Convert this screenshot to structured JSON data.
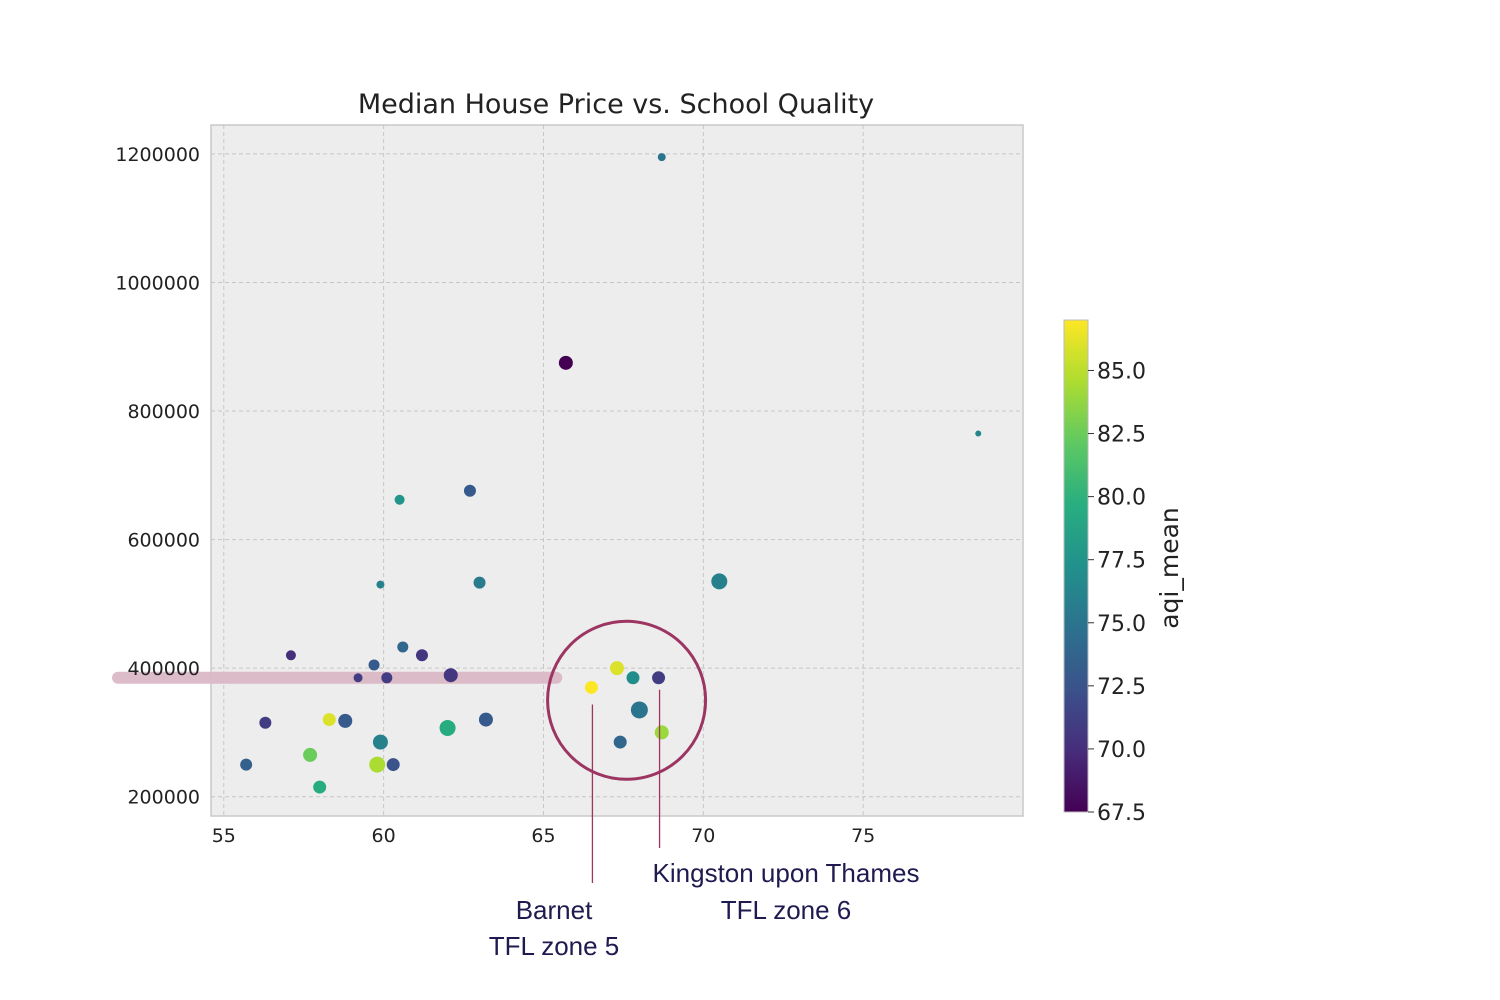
{
  "chart_data": {
    "type": "scatter",
    "title": "Median House Price vs. School Quality",
    "xlabel": "",
    "ylabel": "",
    "xlim": [
      54.6,
      80
    ],
    "ylim": [
      170000,
      1245000
    ],
    "x_ticks": [
      55,
      60,
      65,
      70,
      75
    ],
    "y_ticks": [
      200000,
      400000,
      600000,
      800000,
      1000000,
      1200000
    ],
    "grid": true,
    "colorbar": {
      "label": "aqi_mean",
      "min": 67.5,
      "max": 87.0,
      "ticks": [
        67.5,
        70.0,
        72.5,
        75.0,
        77.5,
        80.0,
        82.5,
        85.0
      ],
      "colormap": "viridis"
    },
    "points": [
      {
        "x": 55.7,
        "y": 250000,
        "c": 73.5,
        "s": 6
      },
      {
        "x": 56.3,
        "y": 315000,
        "c": 71.0,
        "s": 6
      },
      {
        "x": 57.1,
        "y": 420000,
        "c": 70.0,
        "s": 5
      },
      {
        "x": 57.7,
        "y": 265000,
        "c": 82.5,
        "s": 7
      },
      {
        "x": 58.0,
        "y": 215000,
        "c": 79.5,
        "s": 6.5
      },
      {
        "x": 58.3,
        "y": 320000,
        "c": 86.0,
        "s": 6.5
      },
      {
        "x": 58.8,
        "y": 318000,
        "c": 73.0,
        "s": 7
      },
      {
        "x": 59.2,
        "y": 385000,
        "c": 71.0,
        "s": 4.5
      },
      {
        "x": 59.7,
        "y": 405000,
        "c": 73.0,
        "s": 5.5
      },
      {
        "x": 59.8,
        "y": 250000,
        "c": 84.5,
        "s": 8
      },
      {
        "x": 59.9,
        "y": 285000,
        "c": 76.0,
        "s": 7.5
      },
      {
        "x": 59.9,
        "y": 530000,
        "c": 76.0,
        "s": 4
      },
      {
        "x": 60.1,
        "y": 385000,
        "c": 71.0,
        "s": 5.5
      },
      {
        "x": 60.3,
        "y": 250000,
        "c": 72.5,
        "s": 6.5
      },
      {
        "x": 60.5,
        "y": 662000,
        "c": 77.5,
        "s": 5
      },
      {
        "x": 60.6,
        "y": 433000,
        "c": 74.0,
        "s": 5.5
      },
      {
        "x": 61.2,
        "y": 420000,
        "c": 70.5,
        "s": 6
      },
      {
        "x": 62.0,
        "y": 307000,
        "c": 79.5,
        "s": 8
      },
      {
        "x": 62.1,
        "y": 389000,
        "c": 70.5,
        "s": 7
      },
      {
        "x": 62.7,
        "y": 676000,
        "c": 73.0,
        "s": 6
      },
      {
        "x": 63.0,
        "y": 533000,
        "c": 75.5,
        "s": 6
      },
      {
        "x": 63.2,
        "y": 320000,
        "c": 73.0,
        "s": 7
      },
      {
        "x": 65.7,
        "y": 875000,
        "c": 67.5,
        "s": 7
      },
      {
        "x": 66.5,
        "y": 370000,
        "c": 87.0,
        "s": 6.5
      },
      {
        "x": 67.3,
        "y": 400000,
        "c": 86.0,
        "s": 7
      },
      {
        "x": 67.4,
        "y": 285000,
        "c": 74.0,
        "s": 6.5
      },
      {
        "x": 67.8,
        "y": 385000,
        "c": 77.0,
        "s": 6.5
      },
      {
        "x": 68.0,
        "y": 335000,
        "c": 75.0,
        "s": 8.5
      },
      {
        "x": 68.6,
        "y": 385000,
        "c": 71.0,
        "s": 6.5
      },
      {
        "x": 68.7,
        "y": 300000,
        "c": 84.0,
        "s": 7
      },
      {
        "x": 68.7,
        "y": 1195000,
        "c": 75.0,
        "s": 4
      },
      {
        "x": 70.5,
        "y": 535000,
        "c": 76.0,
        "s": 8
      },
      {
        "x": 78.6,
        "y": 765000,
        "c": 76.5,
        "s": 3
      }
    ],
    "highlight_band_y": 385000,
    "highlight_circle": {
      "x": 67.6,
      "y": 350000
    },
    "annotations": [
      {
        "lines": [
          "Barnet",
          "TFL zone 5"
        ],
        "point_x": 66.5,
        "point_y": 370000
      },
      {
        "lines": [
          "Kingston upon Thames",
          "TFL zone 6"
        ],
        "point_x": 68.6,
        "point_y": 385000
      }
    ],
    "colors": {
      "highlight_band": "#dcb9c8",
      "highlight_circle": "#9c3562",
      "annotation_text": "#1f1a4f",
      "plot_bg": "#ededed",
      "grid": "#c6c6c6"
    }
  }
}
